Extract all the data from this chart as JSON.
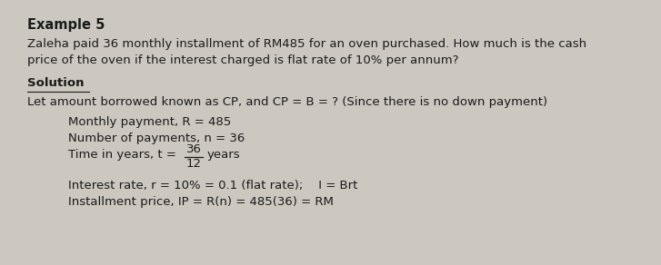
{
  "bg_color": "#ccc8c0",
  "title": "Example 5",
  "question_line1": "Zaleha paid 36 monthly installment of RM485 for an oven purchased. How much is the cash",
  "question_line2": "price of the oven if the interest charged is flat rate of 10% per annum?",
  "solution_label": "Solution",
  "line1": "Let amount borrowed known as CP, and CP = B = ? (Since there is no down payment)",
  "line2": "Monthly payment, R = 485",
  "line3": "Number of payments, n = 36",
  "time_label": "Time in years, t =",
  "time_num": "36",
  "time_denom": "12",
  "time_unit": "years",
  "line5": "Interest rate, r = 10% = 0.1 (flat rate);    I = Brt",
  "line6": "Installment price, IP = R(n) = 485(36) = RM",
  "font_size_title": 10.5,
  "font_size_body": 9.5,
  "text_color": "#1a1a1a"
}
